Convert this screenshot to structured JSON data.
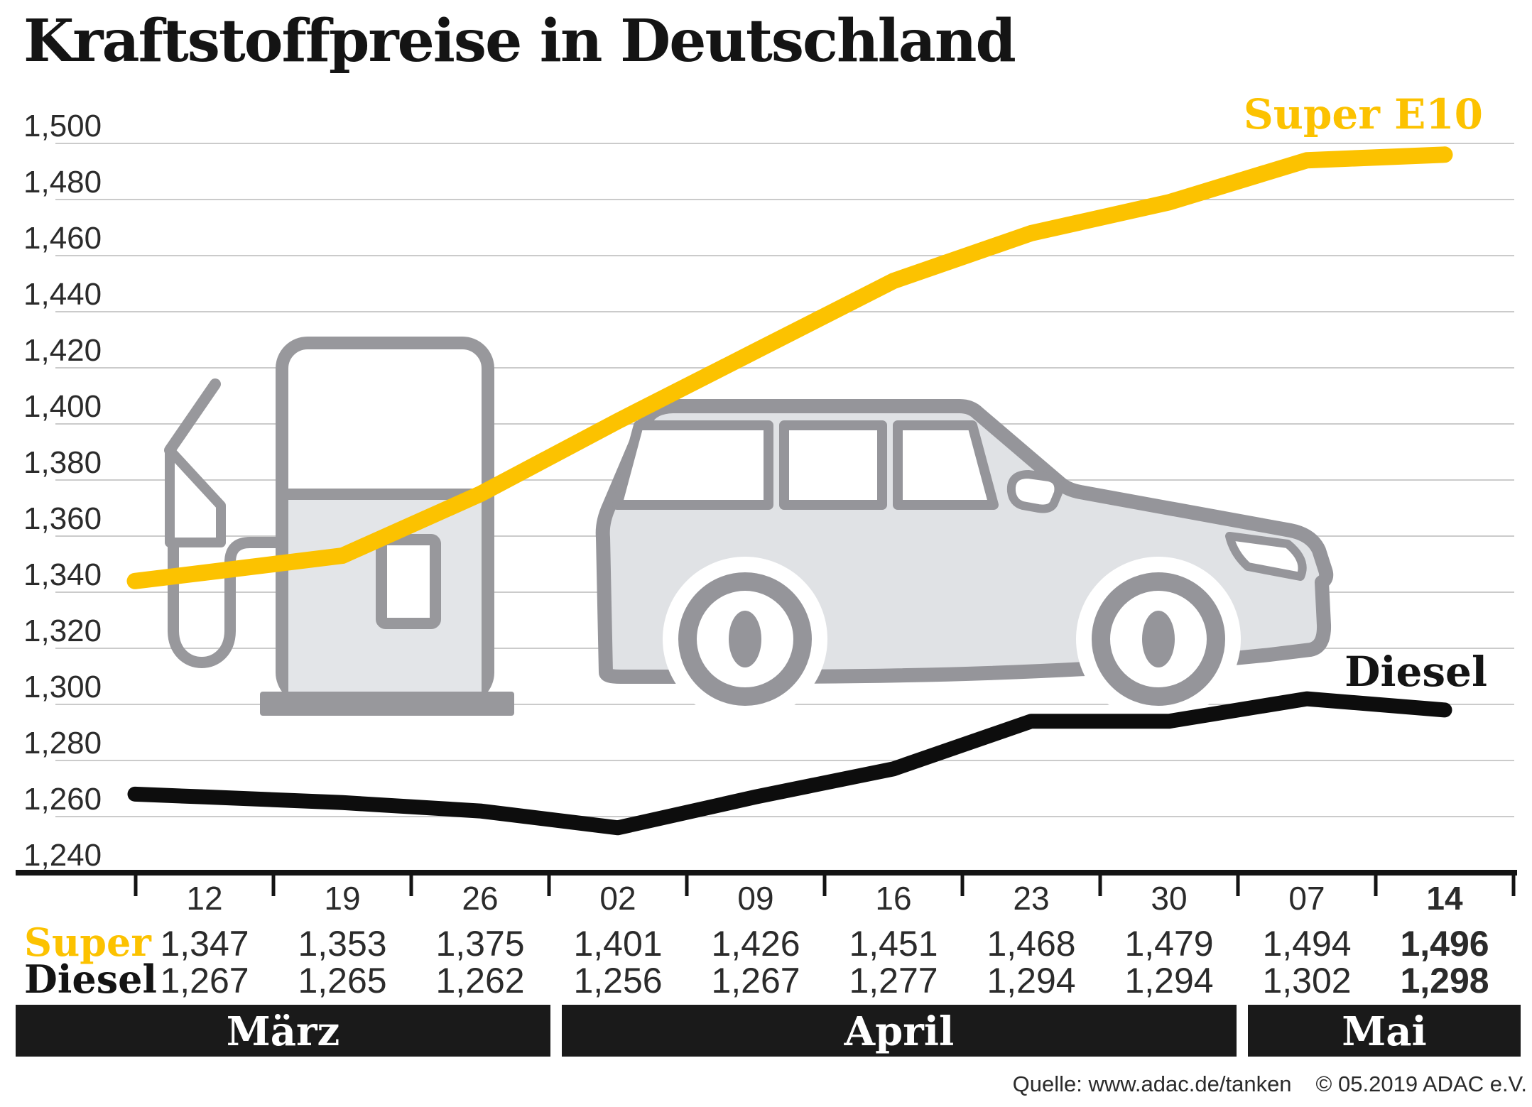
{
  "title": "Kraftstoffpreise in Deutschland",
  "chart_data": {
    "type": "line",
    "title": "Kraftstoffpreise in Deutschland",
    "grid": true,
    "legend_position": "inline-labels-on-chart",
    "y_axis": {
      "min": 1240,
      "max": 1500,
      "step": 20,
      "tick_labels": [
        "1,500",
        "1,480",
        "1,460",
        "1,440",
        "1,420",
        "1,400",
        "1,380",
        "1,360",
        "1,340",
        "1,320",
        "1,300",
        "1,280",
        "1,260",
        "1,240"
      ]
    },
    "x_axis": {
      "tick_labels": [
        "12",
        "19",
        "26",
        "02",
        "09",
        "16",
        "23",
        "30",
        "07",
        "14"
      ],
      "emphasized_tick": "14"
    },
    "months": [
      {
        "label": "März",
        "from_col": 0,
        "to_col": 2
      },
      {
        "label": "April",
        "from_col": 3,
        "to_col": 7
      },
      {
        "label": "Mai",
        "from_col": 8,
        "to_col": 9
      }
    ],
    "series": [
      {
        "name": "Super",
        "label": "Super E10",
        "color": "#FCC200",
        "values": [
          1347,
          1353,
          1375,
          1401,
          1426,
          1451,
          1468,
          1479,
          1494,
          1496
        ],
        "display": [
          "1,347",
          "1,353",
          "1,375",
          "1,401",
          "1,426",
          "1,451",
          "1,468",
          "1,479",
          "1,494",
          "1,496"
        ]
      },
      {
        "name": "Diesel",
        "label": "Diesel",
        "color": "#0D0D0D",
        "values": [
          1267,
          1265,
          1262,
          1256,
          1267,
          1277,
          1294,
          1294,
          1302,
          1298
        ],
        "display": [
          "1,267",
          "1,265",
          "1,262",
          "1,256",
          "1,267",
          "1,277",
          "1,294",
          "1,294",
          "1,302",
          "1,298"
        ]
      }
    ]
  },
  "table": {
    "super_label": "Super",
    "diesel_label": "Diesel"
  },
  "footer": {
    "source": "Quelle: www.adac.de/tanken",
    "copyright": "© 05.2019  ADAC e.V."
  },
  "colors": {
    "super_yellow": "#FCC200",
    "diesel_black": "#0D0D0D",
    "grid_gray": "#CBCBCB",
    "axis_black": "#141414",
    "month_bar_black": "#1A1A1A",
    "illustration_gray": "#98989C",
    "illustration_fill": "#E3E5E8"
  }
}
